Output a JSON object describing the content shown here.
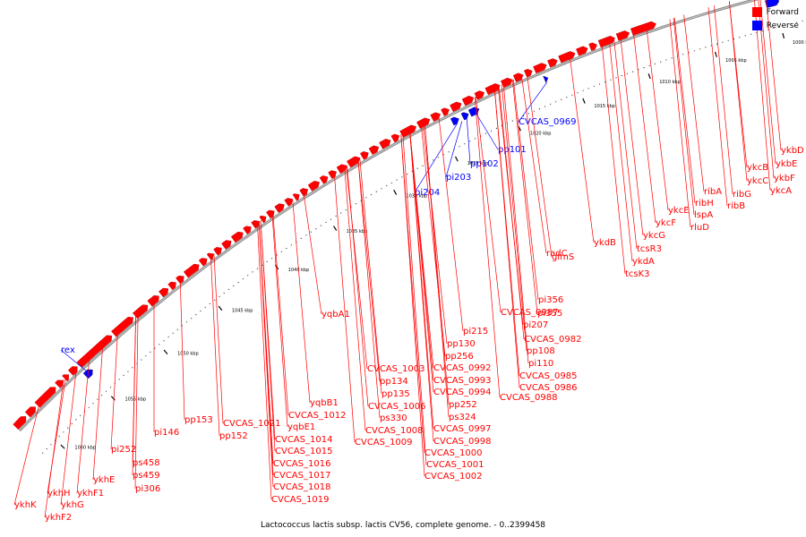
{
  "legend": {
    "forward_label": "Forward",
    "reverse_label": "Reverse",
    "forward_color": "#ff0000",
    "reverse_color": "#0000ff"
  },
  "footer": {
    "caption": "Lactococcus lactis subsp. lactis CV56, complete genome. - 0..2399458"
  },
  "ticks": [
    "1000 kbp",
    "1005 kbp",
    "1010 kbp",
    "1015 kbp",
    "1020 kbp",
    "1025 kbp",
    "1030 kbp",
    "1035 kbp",
    "1040 kbp",
    "1045 kbp",
    "1050 kbp",
    "1055 kbp",
    "1060 kbp"
  ],
  "reverse_genes": [
    "CVCAS_0969",
    "pp101",
    "pp102",
    "pi203",
    "pi204",
    "rex"
  ],
  "forward_genes": [
    "ykbD",
    "ykbE",
    "ykbF",
    "ykcA",
    "ykcB",
    "ykcC",
    "ribG",
    "ribB",
    "ribA",
    "ribH",
    "lspA",
    "rluD",
    "ykcE",
    "ykcF",
    "ykcG",
    "tcsR3",
    "ykdA",
    "tcsK3",
    "ykdB",
    "glmS",
    "radC",
    "pi356",
    "pi355",
    "pi207",
    "CVCAS_0987",
    "CVCAS_0982",
    "pp108",
    "pi110",
    "CVCAS_0985",
    "CVCAS_0986",
    "CVCAS_0988",
    "pi215",
    "pp130",
    "pp256",
    "CVCAS_0992",
    "CVCAS_0993",
    "CVCAS_0994",
    "pp252",
    "ps324",
    "CVCAS_0997",
    "CVCAS_0998",
    "CVCAS_1000",
    "CVCAS_1001",
    "CVCAS_1002",
    "CVCAS_1003",
    "pp134",
    "pp135",
    "CVCAS_1006",
    "ps330",
    "CVCAS_1008",
    "CVCAS_1009",
    "yqbA1",
    "yqbB1",
    "CVCAS_1012",
    "yqbE1",
    "CVCAS_1014",
    "CVCAS_1015",
    "CVCAS_1016",
    "CVCAS_1017",
    "CVCAS_1018",
    "CVCAS_1019",
    "CVCAS_1021",
    "pp152",
    "pp153",
    "pi146",
    "pi252",
    "ps458",
    "ps459",
    "pi306",
    "ykhE",
    "ykhF1",
    "ykhH",
    "ykhG",
    "ykhK",
    "ykhF2"
  ]
}
